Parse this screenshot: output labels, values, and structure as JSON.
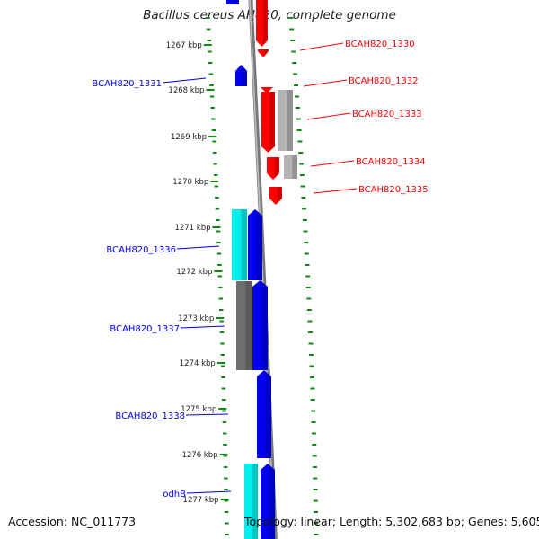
{
  "title": "Bacillus cereus AH820, complete genome",
  "footer": {
    "accession": "Accession: NC_011773",
    "topology": "Topology: linear; Length: 5,302,683 bp; Genes: 5,605"
  },
  "colors": {
    "forward_cds": "#0000ee",
    "reverse_cds": "#ff0000",
    "cyan_feature": "#00eeee",
    "gray_feature": "#6e6e6e",
    "light_gray_feature": "#b4b4b4",
    "tick": "#118811",
    "backbone": "#888888"
  },
  "kbp_ticks": [
    "1267 kbp",
    "1268 kbp",
    "1269 kbp",
    "1270 kbp",
    "1271 kbp",
    "1272 kbp",
    "1273 kbp",
    "1274 kbp",
    "1275 kbp",
    "1276 kbp",
    "1277 kbp"
  ],
  "genes_right": [
    "BCAH820_1330",
    "BCAH820_1332",
    "BCAH820_1333",
    "BCAH820_1334",
    "BCAH820_1335"
  ],
  "genes_left": [
    "BCAH820_1331",
    "BCAH820_1336",
    "BCAH820_1337",
    "BCAH820_1338",
    "odhB"
  ]
}
